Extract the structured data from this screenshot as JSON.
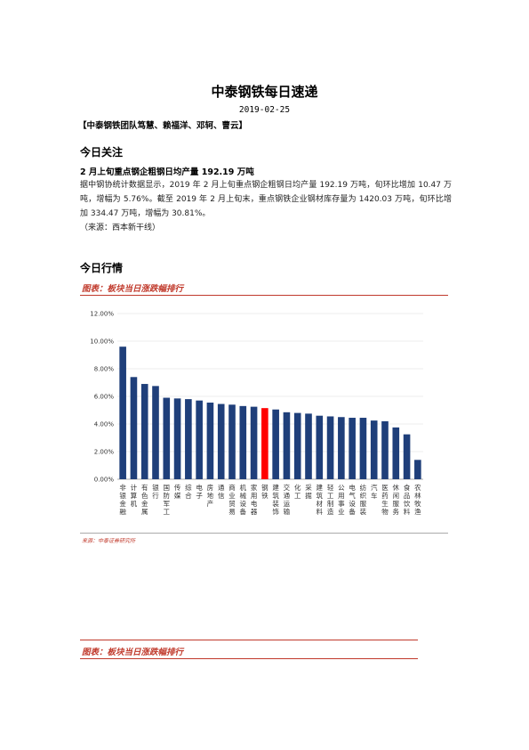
{
  "doc": {
    "title": "中泰钢铁每日速递",
    "date": "2019-02-25",
    "team": "【中泰钢铁团队笃慧、赖福洋、邓轲、曹云】"
  },
  "focus": {
    "heading": "今日关注",
    "subheading": "2 月上旬重点钢企粗钢日均产量 192.19 万吨",
    "paragraph": "据中钢协统计数据显示，2019 年 2 月上旬重点钢企粗钢日均产量 192.19 万吨，旬环比增加 10.47 万吨，增幅为 5.76%。截至 2019 年 2 月上旬末，重点钢铁企业钢材库存量为 1420.03 万吨，旬环比增加 334.47 万吨，增幅为 30.81%。",
    "source": "（来源：西本新干线）"
  },
  "market": {
    "heading": "今日行情",
    "figure_label": "图表：板块当日涨跌幅排行",
    "chart_source": "来源：中泰证券研究所",
    "figure_label_2": "图表：板块当日涨跌幅排行"
  },
  "chart_data": {
    "type": "bar",
    "categories": [
      "非银金融",
      "计算机",
      "有色金属",
      "银行",
      "国防军工",
      "传媒",
      "综合",
      "电子",
      "房地产",
      "通信",
      "商业贸易",
      "机械设备",
      "家用电器",
      "钢铁",
      "建筑装饰",
      "交通运输",
      "化工",
      "采掘",
      "建筑材料",
      "轻工制造",
      "公用事业",
      "电气设备",
      "纺织服装",
      "汽车",
      "医药生物",
      "休闲服务",
      "食品饮料",
      "农林牧渔"
    ],
    "values": [
      9.6,
      7.4,
      6.9,
      6.75,
      5.9,
      5.85,
      5.8,
      5.7,
      5.55,
      5.45,
      5.4,
      5.3,
      5.25,
      5.15,
      5.05,
      4.85,
      4.8,
      4.75,
      4.6,
      4.55,
      4.5,
      4.45,
      4.45,
      4.25,
      4.2,
      3.75,
      3.25,
      1.4
    ],
    "highlight": "钢铁",
    "colors": {
      "bar": "#1f3f7a",
      "highlight": "#ff0000"
    },
    "ylim": [
      0,
      12
    ],
    "yticks": [
      "0.00%",
      "2.00%",
      "4.00%",
      "6.00%",
      "8.00%",
      "10.00%",
      "12.00%"
    ],
    "xlabel": "",
    "ylabel": "",
    "title": ""
  }
}
